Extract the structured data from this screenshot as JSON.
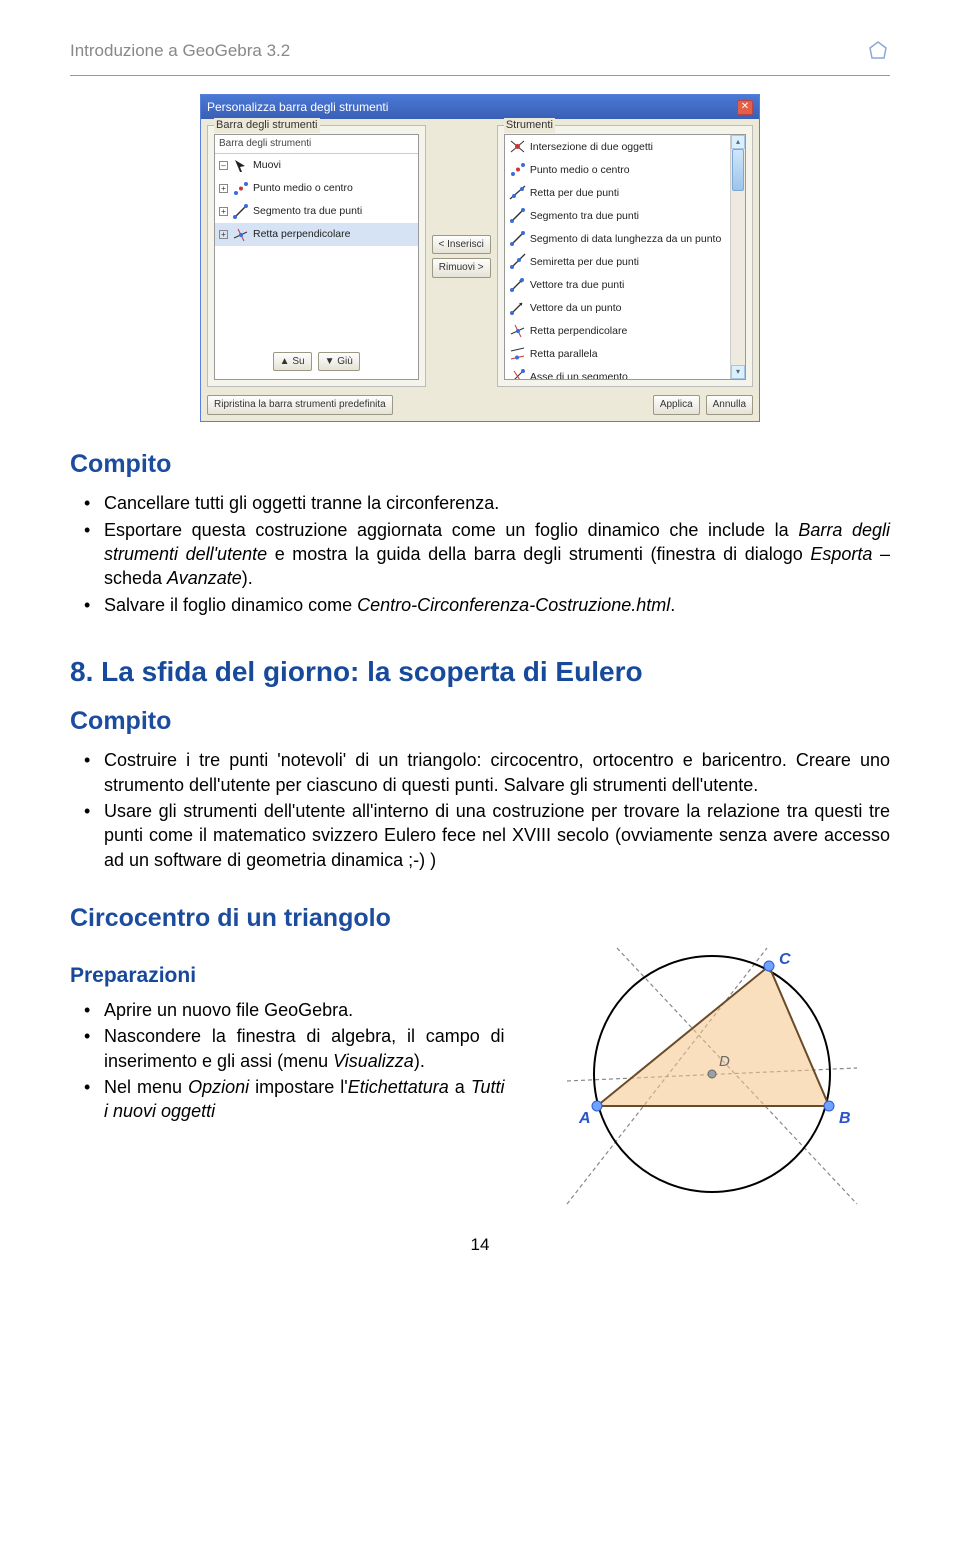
{
  "header": {
    "title": "Introduzione a GeoGebra 3.2"
  },
  "dialog": {
    "title": "Personalizza barra degli strumenti",
    "left_legend": "Barra degli strumenti",
    "right_legend": "Strumenti",
    "tree_head": "Barra degli strumenti",
    "tree_items": [
      {
        "pm": "–",
        "label": "Muovi"
      },
      {
        "pm": "+",
        "label": "Punto medio o centro"
      },
      {
        "pm": "+",
        "label": "Segmento tra due punti"
      },
      {
        "pm": "+",
        "label": "Retta perpendicolare"
      }
    ],
    "mid": {
      "insert": "< Inserisci",
      "remove": "Rimuovi >"
    },
    "nav": {
      "up": "▲ Su",
      "down": "▼ Giù"
    },
    "right_items": [
      "Intersezione di due oggetti",
      "Punto medio o centro",
      "Retta per due punti",
      "Segmento tra due punti",
      "Segmento di data lunghezza da un punto",
      "Semiretta per due punti",
      "Vettore tra due punti",
      "Vettore da un punto",
      "Retta perpendicolare",
      "Retta parallela",
      "Asse di un segmento"
    ],
    "footer": {
      "restore": "Ripristina la barra strumenti predefinita",
      "apply": "Applica",
      "cancel": "Annulla"
    }
  },
  "s1": {
    "heading": "Compito",
    "b1a": "Cancellare tutti gli oggetti tranne la circonferenza.",
    "b2a": "Esportare questa costruzione aggiornata come un foglio dinamico che include la ",
    "b2b": "Barra degli strumenti dell'utente",
    "b2c": "  e mostra la guida della barra degli strumenti (finestra di dialogo ",
    "b2d": "Esporta",
    "b2e": " – scheda ",
    "b2f": "Avanzate",
    "b2g": ").",
    "b3a": "Salvare il foglio dinamico come ",
    "b3b": "Centro-Circonferenza-Costruzione.html",
    "b3c": "."
  },
  "s2": {
    "heading": "8. La sfida del giorno: la scoperta di Eulero",
    "sub": "Compito",
    "b1": "Costruire i tre punti  'notevoli' di un triangolo: circocentro, ortocentro e baricentro. Creare uno strumento dell'utente per ciascuno di questi punti. Salvare gli strumenti dell'utente.",
    "b2": "Usare gli strumenti dell'utente all'interno di una costruzione per trovare la relazione tra questi tre punti come il matematico svizzero Eulero fece nel XVIII secolo (ovviamente senza avere accesso ad un  software di geometria dinamica   ;-) )"
  },
  "s3": {
    "heading": "Circocentro di un  triangolo",
    "prep": "Preparazioni",
    "b1": "Aprire un nuovo file GeoGebra.",
    "b2a": "Nascondere la finestra di algebra, il campo di inserimento e gli assi (menu ",
    "b2b": "Visualizza",
    "b2c": ").",
    "b3a": "Nel menu ",
    "b3b": "Opzioni",
    "b3c": " impostare l'",
    "b3d": "Etichettatura",
    "b3e": " a ",
    "b3f": "Tutti i nuovi oggetti"
  },
  "diagram": {
    "A": "A",
    "B": "B",
    "C": "C",
    "D": "D",
    "colors": {
      "circle": "#000000",
      "triangle_fill": "#f6c48b",
      "triangle_stroke": "#6b4b27",
      "bisector": "#888888",
      "point_outer": "#6ea3ff",
      "point_label": "#2a54c8",
      "aux_point": "#888888"
    }
  },
  "pageNumber": "14"
}
